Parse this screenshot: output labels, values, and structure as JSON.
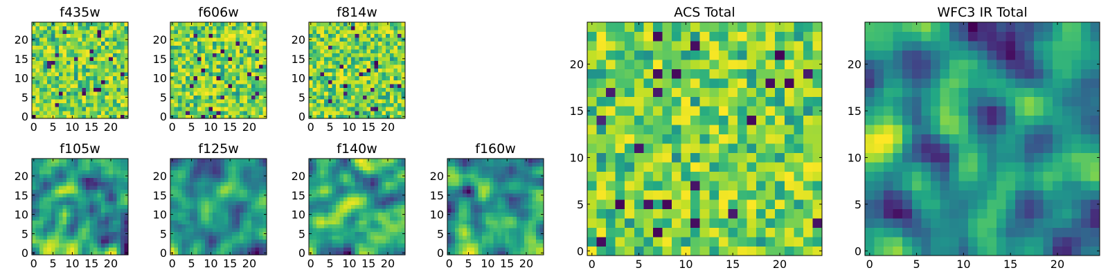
{
  "chart_data": [
    {
      "type": "heatmap",
      "title": "f435w",
      "grid_size": 25,
      "xlim": [
        0,
        24
      ],
      "ylim": [
        0,
        24
      ],
      "xticks": [
        0,
        5,
        10,
        15,
        20
      ],
      "yticks": [
        0,
        5,
        10,
        15,
        20
      ],
      "colormap": "viridis",
      "texture": "noise",
      "seed": 11
    },
    {
      "type": "heatmap",
      "title": "f606w",
      "grid_size": 25,
      "xlim": [
        0,
        24
      ],
      "ylim": [
        0,
        24
      ],
      "xticks": [
        0,
        5,
        10,
        15,
        20
      ],
      "yticks": [
        0,
        5,
        10,
        15,
        20
      ],
      "colormap": "viridis",
      "texture": "noise",
      "seed": 23
    },
    {
      "type": "heatmap",
      "title": "f814w",
      "grid_size": 25,
      "xlim": [
        0,
        24
      ],
      "ylim": [
        0,
        24
      ],
      "xticks": [
        0,
        5,
        10,
        15,
        20
      ],
      "yticks": [
        0,
        5,
        10,
        15,
        20
      ],
      "colormap": "viridis",
      "texture": "noise",
      "seed": 37
    },
    {
      "type": "heatmap",
      "title": "f105w",
      "grid_size": 25,
      "xlim": [
        0,
        24
      ],
      "ylim": [
        0,
        24
      ],
      "xticks": [
        0,
        5,
        10,
        15,
        20
      ],
      "yticks": [
        0,
        5,
        10,
        15,
        20
      ],
      "colormap": "viridis",
      "texture": "smooth",
      "seed": 41
    },
    {
      "type": "heatmap",
      "title": "f125w",
      "grid_size": 25,
      "xlim": [
        0,
        24
      ],
      "ylim": [
        0,
        24
      ],
      "xticks": [
        0,
        5,
        10,
        15,
        20
      ],
      "yticks": [
        0,
        5,
        10,
        15,
        20
      ],
      "colormap": "viridis",
      "texture": "smooth",
      "seed": 53
    },
    {
      "type": "heatmap",
      "title": "f140w",
      "grid_size": 25,
      "xlim": [
        0,
        24
      ],
      "ylim": [
        0,
        24
      ],
      "xticks": [
        0,
        5,
        10,
        15,
        20
      ],
      "yticks": [
        0,
        5,
        10,
        15,
        20
      ],
      "colormap": "viridis",
      "texture": "smooth",
      "seed": 67
    },
    {
      "type": "heatmap",
      "title": "f160w",
      "grid_size": 25,
      "xlim": [
        0,
        24
      ],
      "ylim": [
        0,
        24
      ],
      "xticks": [
        0,
        5,
        10,
        15,
        20
      ],
      "yticks": [
        0,
        5,
        10,
        15,
        20
      ],
      "colormap": "viridis",
      "texture": "smooth",
      "seed": 79
    },
    {
      "type": "heatmap",
      "title": "ACS Total",
      "grid_size": 25,
      "xlim": [
        0,
        24
      ],
      "ylim": [
        0,
        24
      ],
      "xticks": [
        0,
        5,
        10,
        15,
        20
      ],
      "yticks": [
        0,
        5,
        10,
        15,
        20
      ],
      "colormap": "viridis",
      "texture": "noise",
      "seed": 97
    },
    {
      "type": "heatmap",
      "title": "WFC3 IR Total",
      "grid_size": 25,
      "xlim": [
        0,
        24
      ],
      "ylim": [
        0,
        24
      ],
      "xticks": [
        0,
        5,
        10,
        15,
        20
      ],
      "yticks": [
        0,
        5,
        10,
        15,
        20
      ],
      "colormap": "viridis",
      "texture": "smooth",
      "seed": 103
    }
  ]
}
